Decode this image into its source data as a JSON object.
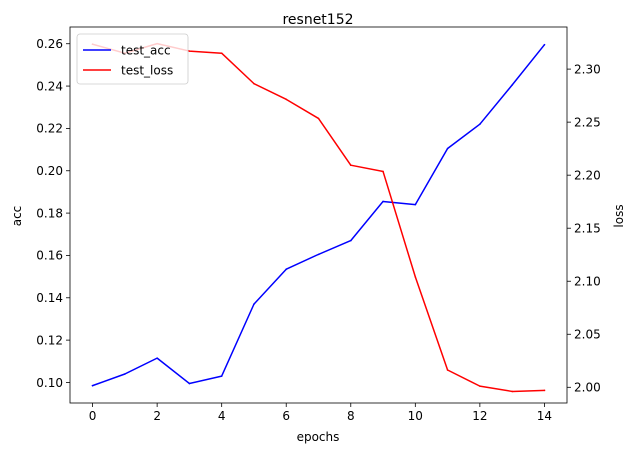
{
  "chart_data": {
    "type": "line",
    "title": "resnet152",
    "xlabel": "epochs",
    "ylabel_left": "acc",
    "ylabel_right": "loss",
    "x": [
      0,
      1,
      2,
      3,
      4,
      5,
      6,
      7,
      8,
      9,
      10,
      11,
      12,
      13,
      14
    ],
    "xlim": [
      -0.7,
      14.7
    ],
    "xticks": [
      0,
      2,
      4,
      6,
      8,
      10,
      12,
      14
    ],
    "ylim_left": [
      0.0903,
      0.2679
    ],
    "yticks_left": [
      0.1,
      0.12,
      0.14,
      0.16,
      0.18,
      0.2,
      0.22,
      0.24,
      0.26
    ],
    "ylim_right": [
      1.9852,
      2.3397
    ],
    "yticks_right": [
      2.0,
      2.05,
      2.1,
      2.15,
      2.2,
      2.25,
      2.3
    ],
    "legend_position": "upper-left",
    "grid": false,
    "series": [
      {
        "name": "test_acc",
        "axis": "left",
        "color": "#0000ff",
        "values": [
          0.0985,
          0.104,
          0.1115,
          0.0995,
          0.103,
          0.137,
          0.1535,
          0.1605,
          0.167,
          0.1855,
          0.184,
          0.2105,
          0.222,
          0.2405,
          0.2595
        ]
      },
      {
        "name": "test_loss",
        "axis": "right",
        "color": "#ff0000",
        "values": [
          2.3235,
          2.315,
          2.324,
          2.317,
          2.315,
          2.2863,
          2.2715,
          2.2535,
          2.2094,
          2.2035,
          2.1041,
          2.0163,
          2.0011,
          1.9961,
          1.9971
        ]
      }
    ]
  }
}
